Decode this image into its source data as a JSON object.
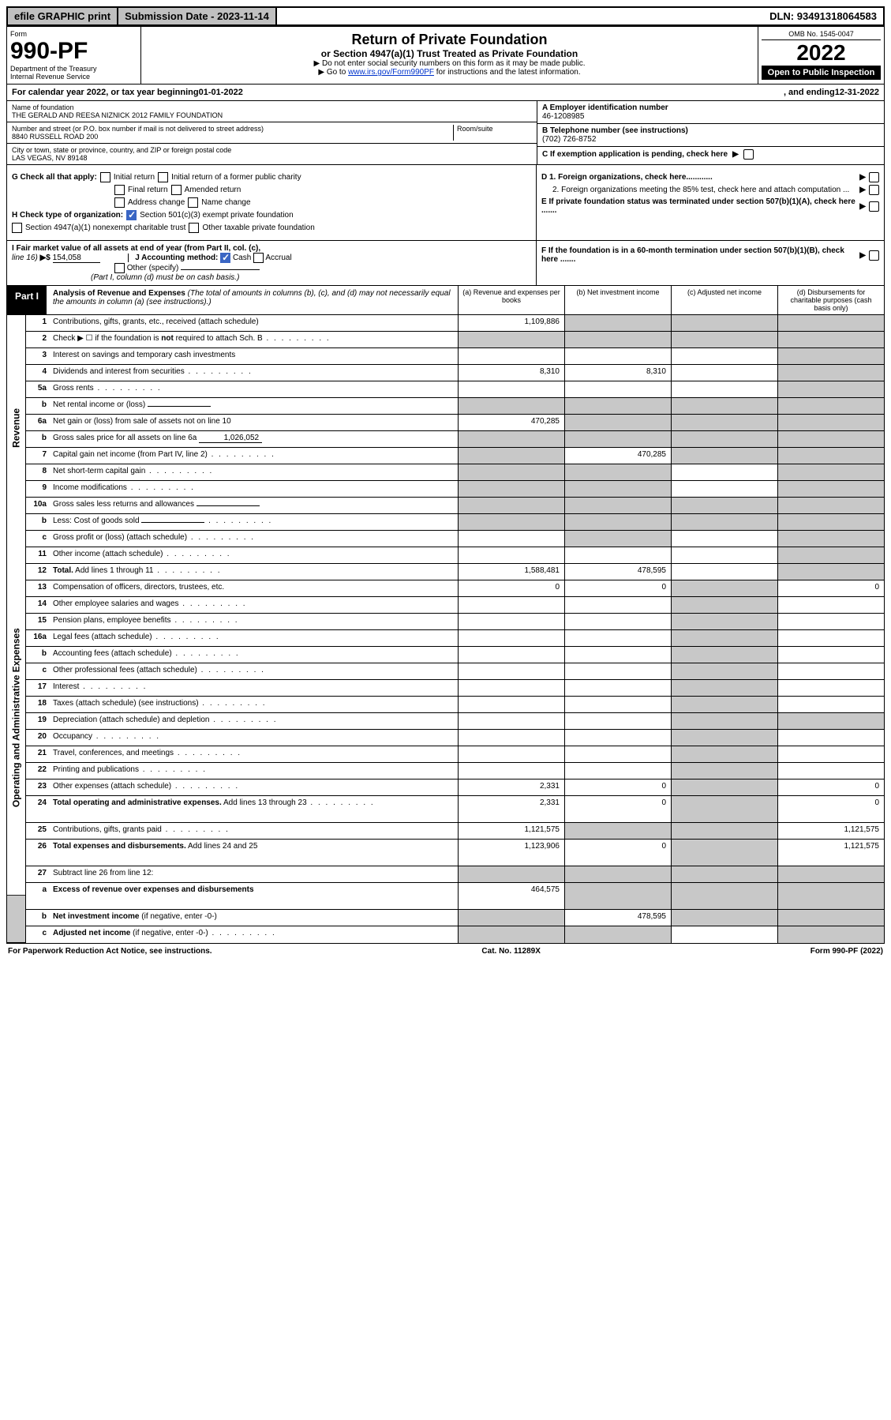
{
  "top": {
    "efile": "efile GRAPHIC print",
    "subLabel": "Submission Date - ",
    "subDate": "2023-11-14",
    "dlnLabel": "DLN: ",
    "dln": "93491318064583"
  },
  "header": {
    "formWord": "Form",
    "formNum": "990-PF",
    "dept": "Department of the Treasury\nInternal Revenue Service",
    "title": "Return of Private Foundation",
    "subtitle": "or Section 4947(a)(1) Trust Treated as Private Foundation",
    "note1": "▶ Do not enter social security numbers on this form as it may be made public.",
    "note2a": "▶ Go to ",
    "note2link": "www.irs.gov/Form990PF",
    "note2b": " for instructions and the latest information.",
    "omb": "OMB No. 1545-0047",
    "year": "2022",
    "open": "Open to Public Inspection"
  },
  "calyear": {
    "prefix": "For calendar year 2022, or tax year beginning ",
    "begin": "01-01-2022",
    "mid": " , and ending ",
    "end": "12-31-2022"
  },
  "nameBlock": {
    "nameLabel": "Name of foundation",
    "name": "THE GERALD AND REESA NIZNICK 2012 FAMILY FOUNDATION",
    "addrLabel": "Number and street (or P.O. box number if mail is not delivered to street address)",
    "addr": "8840 RUSSELL ROAD 200",
    "roomLabel": "Room/suite",
    "cityLabel": "City or town, state or province, country, and ZIP or foreign postal code",
    "city": "LAS VEGAS, NV  89148",
    "einLabel": "A Employer identification number",
    "ein": "46-1208985",
    "telLabel": "B Telephone number (see instructions)",
    "tel": "(702) 726-8752",
    "cLabel": "C If exemption application is pending, check here"
  },
  "gh": {
    "gLabel": "G Check all that apply:",
    "gOpts": [
      "Initial return",
      "Initial return of a former public charity",
      "Final return",
      "Amended return",
      "Address change",
      "Name change"
    ],
    "hLabel": "H Check type of organization:",
    "h1": "Section 501(c)(3) exempt private foundation",
    "h2": "Section 4947(a)(1) nonexempt charitable trust",
    "h3": "Other taxable private foundation",
    "d1": "D 1. Foreign organizations, check here............",
    "d2": "2. Foreign organizations meeting the 85% test, check here and attach computation ...",
    "e": "E  If private foundation status was terminated under section 507(b)(1)(A), check here .......",
    "f": "F  If the foundation is in a 60-month termination under section 507(b)(1)(B), check here ......."
  },
  "ij": {
    "iLabel": "I Fair market value of all assets at end of year (from Part II, col. (c), ",
    "iLine": "line 16)",
    "iArrow": "▶$",
    "iVal": "154,058",
    "jLabel": "J Accounting method:",
    "jCash": "Cash",
    "jAccrual": "Accrual",
    "jOther": "Other (specify)",
    "jNote": "(Part I, column (d) must be on cash basis.)"
  },
  "part1": {
    "label": "Part I",
    "title": "Analysis of Revenue and Expenses",
    "titleNote": " (The total of amounts in columns (b), (c), and (d) may not necessarily equal the amounts in column (a) (see instructions).)",
    "cols": {
      "a": "(a)  Revenue and expenses per books",
      "b": "(b)  Net investment income",
      "c": "(c)  Adjusted net income",
      "d": "(d)  Disbursements for charitable purposes (cash basis only)"
    }
  },
  "rails": {
    "rev": "Revenue",
    "exp": "Operating and Administrative Expenses"
  },
  "rows": [
    {
      "ln": "1",
      "desc": "Contributions, gifts, grants, etc., received (attach schedule)",
      "a": "1,109,886",
      "bGrey": true,
      "cGrey": true,
      "dGrey": true,
      "section": "rev"
    },
    {
      "ln": "2",
      "desc": "Check ▶ ☐ if the foundation is <b>not</b> required to attach Sch. B",
      "aGrey": true,
      "bGrey": true,
      "cGrey": true,
      "dGrey": true,
      "dots": true,
      "section": "rev"
    },
    {
      "ln": "3",
      "desc": "Interest on savings and temporary cash investments",
      "section": "rev",
      "dGrey": true
    },
    {
      "ln": "4",
      "desc": "Dividends and interest from securities",
      "a": "8,310",
      "b": "8,310",
      "dots": true,
      "section": "rev",
      "dGrey": true
    },
    {
      "ln": "5a",
      "desc": "Gross rents",
      "dots": true,
      "section": "rev",
      "dGrey": true
    },
    {
      "ln": "b",
      "desc": "Net rental income or (loss)",
      "inline": true,
      "section": "rev",
      "aGrey": true,
      "bGrey": true,
      "cGrey": true,
      "dGrey": true
    },
    {
      "ln": "6a",
      "desc": "Net gain or (loss) from sale of assets not on line 10",
      "a": "470,285",
      "section": "rev",
      "bGrey": true,
      "cGrey": true,
      "dGrey": true
    },
    {
      "ln": "b",
      "desc": "Gross sales price for all assets on line 6a",
      "inlineVal": "1,026,052",
      "section": "rev",
      "aGrey": true,
      "bGrey": true,
      "cGrey": true,
      "dGrey": true
    },
    {
      "ln": "7",
      "desc": "Capital gain net income (from Part IV, line 2)",
      "b": "470,285",
      "dots": true,
      "section": "rev",
      "aGrey": true,
      "cGrey": true,
      "dGrey": true
    },
    {
      "ln": "8",
      "desc": "Net short-term capital gain",
      "dots": true,
      "section": "rev",
      "aGrey": true,
      "bGrey": true,
      "dGrey": true
    },
    {
      "ln": "9",
      "desc": "Income modifications",
      "dots": true,
      "section": "rev",
      "aGrey": true,
      "bGrey": true,
      "dGrey": true
    },
    {
      "ln": "10a",
      "desc": "Gross sales less returns and allowances",
      "inline": true,
      "section": "rev",
      "aGrey": true,
      "bGrey": true,
      "cGrey": true,
      "dGrey": true
    },
    {
      "ln": "b",
      "desc": "Less: Cost of goods sold",
      "inline": true,
      "dots": true,
      "section": "rev",
      "aGrey": true,
      "bGrey": true,
      "cGrey": true,
      "dGrey": true
    },
    {
      "ln": "c",
      "desc": "Gross profit or (loss) (attach schedule)",
      "dots": true,
      "section": "rev",
      "bGrey": true,
      "dGrey": true
    },
    {
      "ln": "11",
      "desc": "Other income (attach schedule)",
      "dots": true,
      "section": "rev",
      "dGrey": true
    },
    {
      "ln": "12",
      "desc": "<b>Total.</b> Add lines 1 through 11",
      "a": "1,588,481",
      "b": "478,595",
      "dots": true,
      "section": "rev",
      "dGrey": true
    },
    {
      "ln": "13",
      "desc": "Compensation of officers, directors, trustees, etc.",
      "a": "0",
      "b": "0",
      "d": "0",
      "section": "exp",
      "cGrey": true
    },
    {
      "ln": "14",
      "desc": "Other employee salaries and wages",
      "dots": true,
      "section": "exp",
      "cGrey": true
    },
    {
      "ln": "15",
      "desc": "Pension plans, employee benefits",
      "dots": true,
      "section": "exp",
      "cGrey": true
    },
    {
      "ln": "16a",
      "desc": "Legal fees (attach schedule)",
      "dots": true,
      "section": "exp",
      "cGrey": true
    },
    {
      "ln": "b",
      "desc": "Accounting fees (attach schedule)",
      "dots": true,
      "section": "exp",
      "cGrey": true
    },
    {
      "ln": "c",
      "desc": "Other professional fees (attach schedule)",
      "dots": true,
      "section": "exp",
      "cGrey": true
    },
    {
      "ln": "17",
      "desc": "Interest",
      "dots": true,
      "section": "exp",
      "cGrey": true
    },
    {
      "ln": "18",
      "desc": "Taxes (attach schedule) (see instructions)",
      "dots": true,
      "section": "exp",
      "cGrey": true
    },
    {
      "ln": "19",
      "desc": "Depreciation (attach schedule) and depletion",
      "dots": true,
      "section": "exp",
      "cGrey": true,
      "dGrey": true
    },
    {
      "ln": "20",
      "desc": "Occupancy",
      "dots": true,
      "section": "exp",
      "cGrey": true
    },
    {
      "ln": "21",
      "desc": "Travel, conferences, and meetings",
      "dots": true,
      "section": "exp",
      "cGrey": true
    },
    {
      "ln": "22",
      "desc": "Printing and publications",
      "dots": true,
      "section": "exp",
      "cGrey": true
    },
    {
      "ln": "23",
      "desc": "Other expenses (attach schedule)",
      "a": "2,331",
      "b": "0",
      "d": "0",
      "dots": true,
      "section": "exp",
      "cGrey": true
    },
    {
      "ln": "24",
      "desc": "<b>Total operating and administrative expenses.</b> Add lines 13 through 23",
      "a": "2,331",
      "b": "0",
      "d": "0",
      "dots": true,
      "section": "exp",
      "cGrey": true,
      "tall": true
    },
    {
      "ln": "25",
      "desc": "Contributions, gifts, grants paid",
      "a": "1,121,575",
      "d": "1,121,575",
      "dots": true,
      "section": "exp",
      "bGrey": true,
      "cGrey": true
    },
    {
      "ln": "26",
      "desc": "<b>Total expenses and disbursements.</b> Add lines 24 and 25",
      "a": "1,123,906",
      "b": "0",
      "d": "1,121,575",
      "section": "exp",
      "cGrey": true,
      "tall": true
    },
    {
      "ln": "27",
      "desc": "Subtract line 26 from line 12:",
      "section": "bot",
      "aGrey": true,
      "bGrey": true,
      "cGrey": true,
      "dGrey": true
    },
    {
      "ln": "a",
      "desc": "<b>Excess of revenue over expenses and disbursements</b>",
      "a": "464,575",
      "section": "bot",
      "bGrey": true,
      "cGrey": true,
      "dGrey": true,
      "tall": true
    },
    {
      "ln": "b",
      "desc": "<b>Net investment income</b> (if negative, enter -0-)",
      "b": "478,595",
      "section": "bot",
      "aGrey": true,
      "cGrey": true,
      "dGrey": true
    },
    {
      "ln": "c",
      "desc": "<b>Adjusted net income</b> (if negative, enter -0-)",
      "dots": true,
      "section": "bot",
      "aGrey": true,
      "bGrey": true,
      "dGrey": true
    }
  ],
  "footer": {
    "left": "For Paperwork Reduction Act Notice, see instructions.",
    "mid": "Cat. No. 11289X",
    "right": "Form 990-PF (2022)"
  }
}
